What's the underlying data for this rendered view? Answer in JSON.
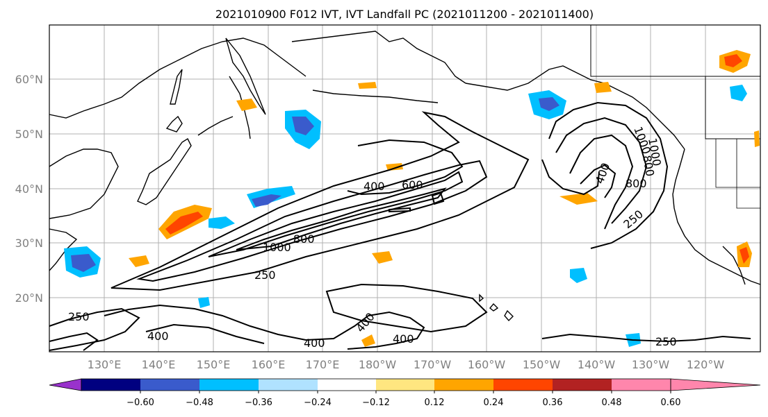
{
  "title": "2021010900 F012 IVT, IVT Landfall PC (2021011200 - 2021011400)",
  "lat_labels": [
    "60°N",
    "50°N",
    "40°N",
    "30°N",
    "20°N"
  ],
  "lon_labels": [
    "130°E",
    "140°E",
    "150°E",
    "160°E",
    "170°E",
    "180°W",
    "170°W",
    "160°W",
    "150°W",
    "140°W",
    "130°W",
    "120°W"
  ],
  "colorbar": {
    "colors": [
      "#9932cc",
      "#000080",
      "#3a5bcc",
      "#00bfff",
      "#b0e2ff",
      "#ffffff",
      "#ffe680",
      "#ffa500",
      "#ff4500",
      "#b22222",
      "#ff86ac"
    ],
    "tick_labels": [
      "−0.60",
      "−0.48",
      "−0.36",
      "−0.24",
      "−0.12",
      "0.12",
      "0.24",
      "0.36",
      "0.48",
      "0.60"
    ]
  },
  "contour_labels": [
    "400",
    "600",
    "800",
    "1000",
    "800",
    "1000",
    "250",
    "400",
    "800",
    "1000",
    "250",
    "250",
    "400",
    "400",
    "400",
    "400",
    "250"
  ],
  "legend_colors": {
    "negative": [
      "#9932cc",
      "#000080",
      "#3a5bcc",
      "#00bfff",
      "#b0e2ff"
    ],
    "positive": [
      "#ffe680",
      "#ffa500",
      "#ff4500",
      "#b22222",
      "#ff86ac"
    ]
  }
}
